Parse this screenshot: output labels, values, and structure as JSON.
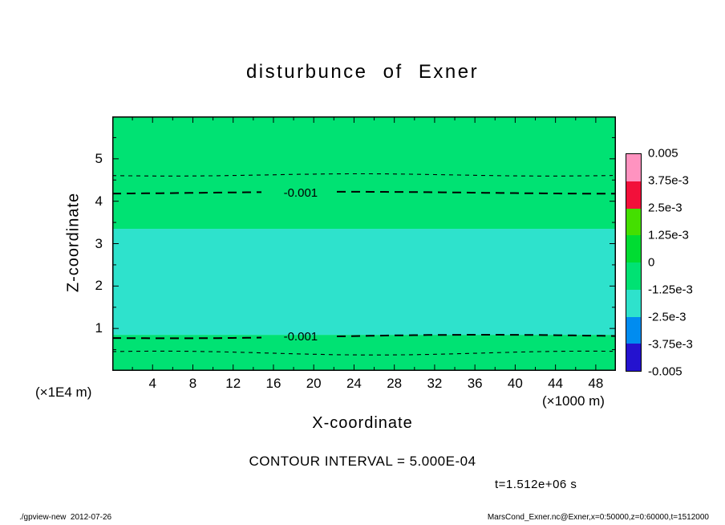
{
  "title": "disturbunce of Exner",
  "axes": {
    "x": {
      "label": "X-coordinate",
      "unit": "(×1000 m)",
      "min": 0,
      "max": 50,
      "ticks": [
        4,
        8,
        12,
        16,
        20,
        24,
        28,
        32,
        36,
        40,
        44,
        48
      ]
    },
    "z": {
      "label": "Z-coordinate",
      "unit": "(×1E4 m)",
      "min": 0,
      "max": 6,
      "ticks": [
        1,
        2,
        3,
        4,
        5
      ]
    }
  },
  "colorbar": {
    "labels": [
      "0.005",
      "3.75e-3",
      "2.5e-3",
      "1.25e-3",
      "0",
      "-1.25e-3",
      "-2.5e-3",
      "-3.75e-3",
      "-0.005"
    ],
    "colors": [
      "#ff93c0",
      "#f2103a",
      "#44df00",
      "#00dc32",
      "#00e273",
      "#2ee2cc",
      "#008cf0",
      "#2412cf"
    ]
  },
  "annotations": {
    "contour_interval": "CONTOUR INTERVAL = 5.000E-04",
    "time": "t=1.512e+06 s"
  },
  "footer": {
    "left": "./gpview-new  2012-07-26",
    "right": "MarsCond_Exner.nc@Exner,x=0:50000,z=0:60000,t=1512000"
  },
  "chart_data": {
    "type": "heatmap",
    "subtype": "filled-contour",
    "title": "disturbunce of Exner",
    "xlabel": "X-coordinate (×1000 m)",
    "ylabel": "Z-coordinate (×1E4 m)",
    "xlim": [
      0,
      50
    ],
    "zlim": [
      0,
      6
    ],
    "contour_interval": 0.0005,
    "time_seconds": 1512000,
    "fill_bands": [
      {
        "z_from": 0,
        "z_to": 0.85,
        "value_range": "0 to -1.25e-3",
        "color": "#00e273"
      },
      {
        "z_from": 0.85,
        "z_to": 3.35,
        "value_range": "-1.25e-3 to -2.5e-3",
        "color": "#2ee2cc"
      },
      {
        "z_from": 3.35,
        "z_to": 6,
        "value_range": "0 to -1.25e-3",
        "color": "#00e273"
      }
    ],
    "contour_lines": [
      {
        "value": -0.0005,
        "z": 4.62,
        "style": "dashed-thin",
        "label": null,
        "label_x": null,
        "wave_amp": 1.4,
        "wave_len": 75,
        "wave_phase": 0.6
      },
      {
        "value": -0.001,
        "z": 4.2,
        "style": "dashed-thick",
        "label": "-0.001",
        "label_x": 18.7,
        "wave_amp": 1.2,
        "wave_len": 110,
        "wave_phase": 2.1
      },
      {
        "value": -0.001,
        "z": 0.81,
        "style": "dashed-thick",
        "label": "-0.001",
        "label_x": 18.7,
        "wave_amp": 2.2,
        "wave_len": 125,
        "wave_phase": 1.0
      },
      {
        "value": -0.0005,
        "z": 0.42,
        "style": "dashed-thin",
        "label": null,
        "label_x": null,
        "wave_amp": 2.4,
        "wave_len": 85,
        "wave_phase": 4.0
      }
    ]
  }
}
